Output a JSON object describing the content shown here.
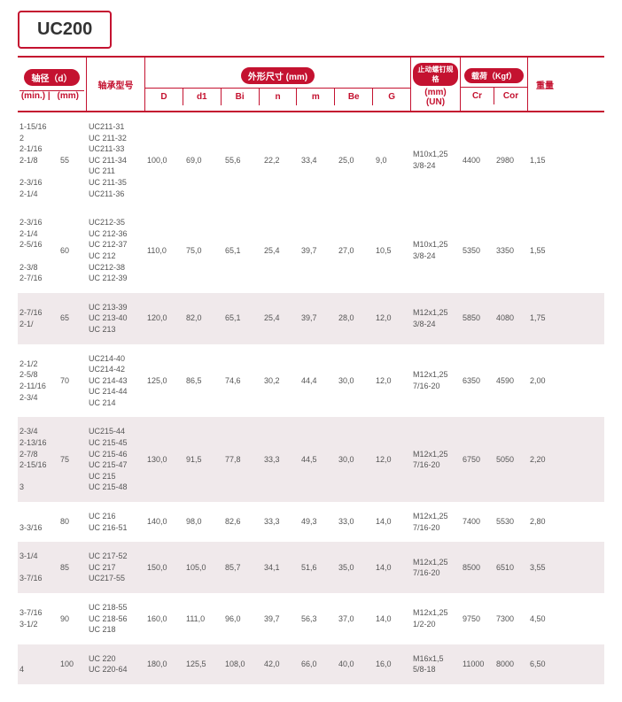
{
  "title": "UC200",
  "header": {
    "shaft": "轴径（d）",
    "min": "(min.)",
    "mm": "(mm)",
    "model": "轴承型号",
    "dims": "外形尺寸 (mm)",
    "D": "D",
    "d1": "d1",
    "Bi": "Bi",
    "n": "n",
    "m": "m",
    "Be": "Be",
    "G": "G",
    "bolt": "止动螺钉规格",
    "boltmm": "(mm)",
    "boltun": "(UN)",
    "load": "载荷（Kgf）",
    "Cr": "Cr",
    "Cor": "Cor",
    "weight": "重量"
  },
  "rows": [
    {
      "min": [
        "1-15/16",
        "2",
        "2-1/16",
        "2-1/8",
        "",
        "2-3/16",
        "2-1/4"
      ],
      "mm": "55",
      "model": [
        "UC211-31",
        "UC 211-32",
        "UC211-33",
        "UC 211-34",
        "UC 211",
        "UC 211-35",
        "UC211-36"
      ],
      "D": "100,0",
      "d1": "69,0",
      "Bi": "55,6",
      "n": "22,2",
      "m": "33,4",
      "Be": "25,0",
      "G": "9,0",
      "bolt": [
        "M10x1,25",
        "3/8-24"
      ],
      "Cr": "4400",
      "Cor": "2980",
      "wt": "1,15",
      "alt": false
    },
    {
      "min": [
        "2-3/16",
        "2-1/4",
        "2-5/16",
        "",
        "2-3/8",
        "2-7/16"
      ],
      "mm": "60",
      "model": [
        "UC212-35",
        "UC 212-36",
        "UC 212-37",
        "UC 212",
        "UC212-38",
        "UC 212-39"
      ],
      "D": "110,0",
      "d1": "75,0",
      "Bi": "65,1",
      "n": "25,4",
      "m": "39,7",
      "Be": "27,0",
      "G": "10,5",
      "bolt": [
        "M10x1,25",
        "3/8-24"
      ],
      "Cr": "5350",
      "Cor": "3350",
      "wt": "1,55",
      "alt": false
    },
    {
      "min": [
        "2-7/16",
        "2-1/"
      ],
      "mm": "65",
      "model": [
        "UC 213-39",
        "UC 213-40",
        "UC 213"
      ],
      "D": "120,0",
      "d1": "82,0",
      "Bi": "65,1",
      "n": "25,4",
      "m": "39,7",
      "Be": "28,0",
      "G": "12,0",
      "bolt": [
        "M12x1,25",
        "3/8-24"
      ],
      "Cr": "5850",
      "Cor": "4080",
      "wt": "1,75",
      "alt": true
    },
    {
      "min": [
        "2-1/2",
        "2-5/8",
        "2-11/16",
        "2-3/4"
      ],
      "mm": "70",
      "model": [
        "UC214-40",
        "UC214-42",
        "UC 214-43",
        "UC 214-44",
        "UC 214"
      ],
      "D": "125,0",
      "d1": "86,5",
      "Bi": "74,6",
      "n": "30,2",
      "m": "44,4",
      "Be": "30,0",
      "G": "12,0",
      "bolt": [
        "M12x1,25",
        "7/16-20"
      ],
      "Cr": "6350",
      "Cor": "4590",
      "wt": "2,00",
      "alt": false
    },
    {
      "min": [
        "2-3/4",
        "2-13/16",
        "2-7/8",
        "2-15/16",
        "",
        "3"
      ],
      "mm": "75",
      "model": [
        "UC215-44",
        "UC 215-45",
        "UC 215-46",
        "UC 215-47",
        "UC 215",
        "UC 215-48"
      ],
      "D": "130,0",
      "d1": "91,5",
      "Bi": "77,8",
      "n": "33,3",
      "m": "44,5",
      "Be": "30,0",
      "G": "12,0",
      "bolt": [
        "M12x1,25",
        "7/16-20"
      ],
      "Cr": "6750",
      "Cor": "5050",
      "wt": "2,20",
      "alt": true
    },
    {
      "min": [
        "",
        "3-3/16"
      ],
      "mm": "80",
      "model": [
        "UC 216",
        "UC 216-51"
      ],
      "D": "140,0",
      "d1": "98,0",
      "Bi": "82,6",
      "n": "33,3",
      "m": "49,3",
      "Be": "33,0",
      "G": "14,0",
      "bolt": [
        "M12x1,25",
        "7/16-20"
      ],
      "Cr": "7400",
      "Cor": "5530",
      "wt": "2,80",
      "alt": false
    },
    {
      "min": [
        "3-1/4",
        "",
        "3-7/16"
      ],
      "mm": "85",
      "model": [
        "UC 217-52",
        "UC 217",
        "UC217-55"
      ],
      "D": "150,0",
      "d1": "105,0",
      "Bi": "85,7",
      "n": "34,1",
      "m": "51,6",
      "Be": "35,0",
      "G": "14,0",
      "bolt": [
        "M12x1,25",
        "7/16-20"
      ],
      "Cr": "8500",
      "Cor": "6510",
      "wt": "3,55",
      "alt": true
    },
    {
      "min": [
        "3-7/16",
        "3-1/2"
      ],
      "mm": "90",
      "model": [
        "UC 218-55",
        "UC 218-56",
        "UC 218"
      ],
      "D": "160,0",
      "d1": "111,0",
      "Bi": "96,0",
      "n": "39,7",
      "m": "56,3",
      "Be": "37,0",
      "G": "14,0",
      "bolt": [
        "M12x1,25",
        "1/2-20"
      ],
      "Cr": "9750",
      "Cor": "7300",
      "wt": "4,50",
      "alt": false
    },
    {
      "min": [
        "",
        "4"
      ],
      "mm": "100",
      "model": [
        "UC 220",
        "UC 220-64"
      ],
      "D": "180,0",
      "d1": "125,5",
      "Bi": "108,0",
      "n": "42,0",
      "m": "66,0",
      "Be": "40,0",
      "G": "16,0",
      "bolt": [
        "M16x1,5",
        "5/8-18"
      ],
      "Cr": "11000",
      "Cor": "8000",
      "wt": "6,50",
      "alt": true
    }
  ]
}
